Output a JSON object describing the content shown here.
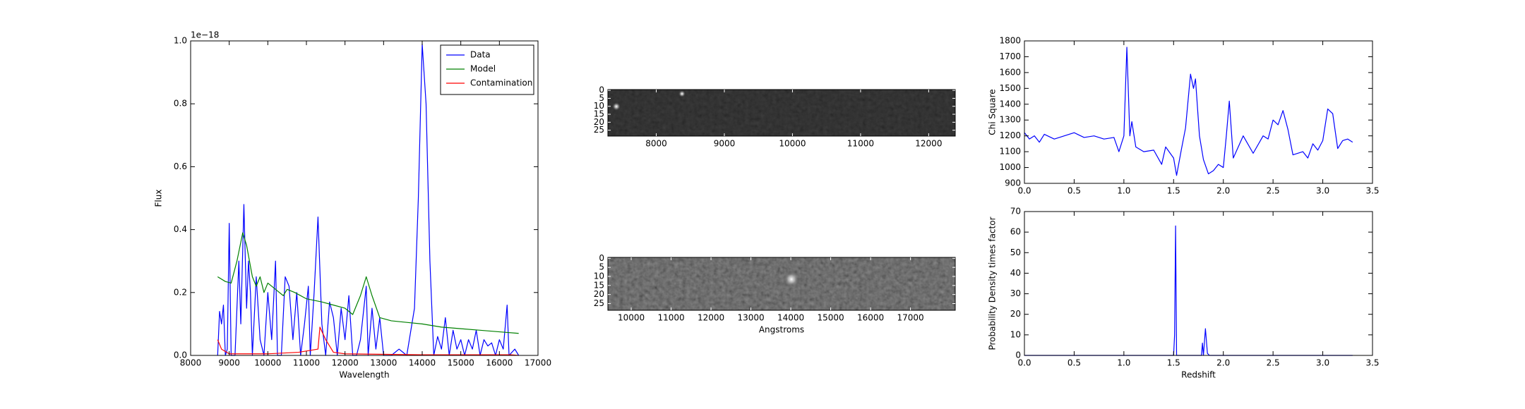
{
  "chart_data": [
    {
      "type": "line",
      "xlabel": "Wavelength",
      "ylabel": "Flux",
      "offset_label": "1e−18",
      "legend": "upper right",
      "xlim": [
        8000,
        17000
      ],
      "ylim": [
        0,
        1.0
      ],
      "xticks": [
        8000,
        9000,
        10000,
        11000,
        12000,
        13000,
        14000,
        15000,
        16000,
        17000
      ],
      "yticks": [
        {
          "value": 0,
          "label": "0.0"
        },
        0.2,
        0.4,
        0.6,
        0.8,
        {
          "value": 1,
          "label": "1.0"
        }
      ],
      "series": [
        {
          "name": "Data",
          "color": "#0000ff",
          "x": [
            8700,
            8750,
            8800,
            8850,
            8900,
            8950,
            9000,
            9050,
            9150,
            9250,
            9300,
            9380,
            9450,
            9500,
            9550,
            9600,
            9700,
            9800,
            9900,
            10000,
            10100,
            10200,
            10250,
            10350,
            10450,
            10550,
            10650,
            10750,
            10850,
            10950,
            11050,
            11100,
            11200,
            11300,
            11400,
            11500,
            11600,
            11700,
            11800,
            11900,
            12000,
            12100,
            12200,
            12300,
            12400,
            12550,
            12600,
            12700,
            12800,
            12900,
            13000,
            13200,
            13400,
            13600,
            13800,
            13900,
            14000,
            14100,
            14200,
            14300,
            14400,
            14500,
            14600,
            14700,
            14800,
            14900,
            15000,
            15100,
            15200,
            15300,
            15400,
            15500,
            15600,
            15700,
            15800,
            15900,
            16000,
            16100,
            16200,
            16250,
            16400,
            16500
          ],
          "values": [
            0,
            0.14,
            0.1,
            0.16,
            0,
            0.02,
            0.42,
            0,
            0,
            0.3,
            0.1,
            0.48,
            0.15,
            0.3,
            0.2,
            0,
            0.25,
            0.05,
            0,
            0.2,
            0.05,
            0.3,
            0,
            0,
            0.25,
            0.22,
            0.05,
            0.2,
            0,
            0.1,
            0.22,
            0,
            0.2,
            0.44,
            0.1,
            0,
            0.17,
            0.12,
            0,
            0.15,
            0.05,
            0.19,
            0,
            0,
            0.05,
            0.22,
            0,
            0.15,
            0.02,
            0.12,
            0,
            0,
            0.02,
            0,
            0.15,
            0.5,
            0.99,
            0.8,
            0.3,
            0,
            0.06,
            0.02,
            0.12,
            0,
            0.08,
            0.02,
            0.05,
            0,
            0.05,
            0.02,
            0.08,
            0,
            0.05,
            0.03,
            0.04,
            0,
            0.05,
            0.02,
            0.16,
            0,
            0.02,
            0
          ]
        },
        {
          "name": "Model",
          "color": "#008000",
          "x": [
            8700,
            8900,
            9050,
            9200,
            9350,
            9450,
            9600,
            9700,
            9800,
            9900,
            10000,
            10200,
            10400,
            10500,
            10700,
            11000,
            11400,
            11700,
            12000,
            12200,
            12400,
            12550,
            12700,
            12900,
            13200,
            13600,
            14000,
            14500,
            15000,
            15500,
            16000,
            16500
          ],
          "values": [
            0.25,
            0.235,
            0.23,
            0.3,
            0.39,
            0.35,
            0.25,
            0.22,
            0.25,
            0.2,
            0.23,
            0.21,
            0.19,
            0.21,
            0.2,
            0.18,
            0.17,
            0.16,
            0.15,
            0.13,
            0.19,
            0.25,
            0.19,
            0.12,
            0.11,
            0.105,
            0.1,
            0.09,
            0.085,
            0.08,
            0.075,
            0.07
          ]
        },
        {
          "name": "Contamination",
          "color": "#ff0000",
          "x": [
            8700,
            8800,
            9000,
            10000,
            10800,
            11300,
            11350,
            11500,
            11700,
            12000,
            14000,
            16300,
            16500
          ],
          "values": [
            0.05,
            0.02,
            0.005,
            0.005,
            0.01,
            0.02,
            0.09,
            0.05,
            0.01,
            0.005,
            0.002,
            0.002,
            0
          ]
        }
      ]
    },
    {
      "type": "image",
      "xlim": [
        7290,
        12390
      ],
      "ylim": [
        28.7,
        -0.5
      ],
      "xticks": [
        8000,
        9000,
        10000,
        11000,
        12000
      ],
      "yticks": [
        0,
        5,
        10,
        15,
        20,
        25
      ]
    },
    {
      "type": "image",
      "xlabel": "Angstroms",
      "xlim": [
        9415,
        18122
      ],
      "ylim": [
        28.7,
        -0.5
      ],
      "xticks": [
        10000,
        11000,
        12000,
        13000,
        14000,
        15000,
        16000,
        17000
      ],
      "yticks": [
        0,
        5,
        10,
        15,
        20,
        25
      ]
    },
    {
      "type": "line",
      "ylabel": "Chi Square",
      "xlim": [
        0,
        3.5
      ],
      "ylim": [
        900,
        1800
      ],
      "xticks": [
        {
          "value": 0,
          "label": "0.0"
        },
        0.5,
        {
          "value": 1,
          "label": "1.0"
        },
        1.5,
        {
          "value": 2,
          "label": "2.0"
        },
        2.5,
        {
          "value": 3,
          "label": "3.0"
        },
        3.5
      ],
      "yticks": [
        900,
        1000,
        1100,
        1200,
        1300,
        1400,
        1500,
        1600,
        1700,
        1800
      ],
      "series": [
        {
          "color": "#0000ff",
          "x": [
            0,
            0.05,
            0.1,
            0.15,
            0.2,
            0.3,
            0.4,
            0.5,
            0.6,
            0.7,
            0.8,
            0.9,
            0.95,
            1.0,
            1.03,
            1.06,
            1.08,
            1.12,
            1.2,
            1.3,
            1.38,
            1.42,
            1.5,
            1.53,
            1.58,
            1.62,
            1.67,
            1.7,
            1.72,
            1.76,
            1.8,
            1.85,
            1.9,
            1.95,
            2.0,
            2.03,
            2.06,
            2.1,
            2.2,
            2.3,
            2.4,
            2.45,
            2.5,
            2.55,
            2.6,
            2.65,
            2.7,
            2.8,
            2.85,
            2.9,
            2.95,
            3.0,
            3.05,
            3.1,
            3.15,
            3.2,
            3.25,
            3.3
          ],
          "values": [
            1220,
            1180,
            1200,
            1160,
            1210,
            1180,
            1200,
            1220,
            1190,
            1200,
            1180,
            1190,
            1100,
            1200,
            1760,
            1200,
            1290,
            1130,
            1100,
            1110,
            1020,
            1130,
            1060,
            950,
            1120,
            1250,
            1590,
            1500,
            1560,
            1200,
            1050,
            960,
            980,
            1020,
            1000,
            1200,
            1420,
            1060,
            1200,
            1090,
            1200,
            1180,
            1300,
            1270,
            1360,
            1240,
            1080,
            1100,
            1060,
            1150,
            1110,
            1170,
            1370,
            1340,
            1120,
            1170,
            1180,
            1160
          ]
        }
      ]
    },
    {
      "type": "line",
      "xlabel": "Redshift",
      "ylabel": "Probability Density times factor",
      "xlim": [
        0,
        3.5
      ],
      "ylim": [
        0,
        70
      ],
      "xticks": [
        {
          "value": 0,
          "label": "0.0"
        },
        0.5,
        {
          "value": 1,
          "label": "1.0"
        },
        1.5,
        {
          "value": 2,
          "label": "2.0"
        },
        2.5,
        {
          "value": 3,
          "label": "3.0"
        },
        3.5
      ],
      "yticks": [
        0,
        10,
        20,
        30,
        40,
        50,
        60,
        70
      ],
      "series": [
        {
          "color": "#0000ff",
          "x": [
            0,
            1.5,
            1.51,
            1.52,
            1.53,
            1.78,
            1.79,
            1.8,
            1.82,
            1.84,
            1.86,
            3.3
          ],
          "values": [
            0,
            0,
            10,
            63,
            0,
            0,
            6,
            0,
            13,
            1,
            0,
            0
          ]
        }
      ]
    }
  ]
}
